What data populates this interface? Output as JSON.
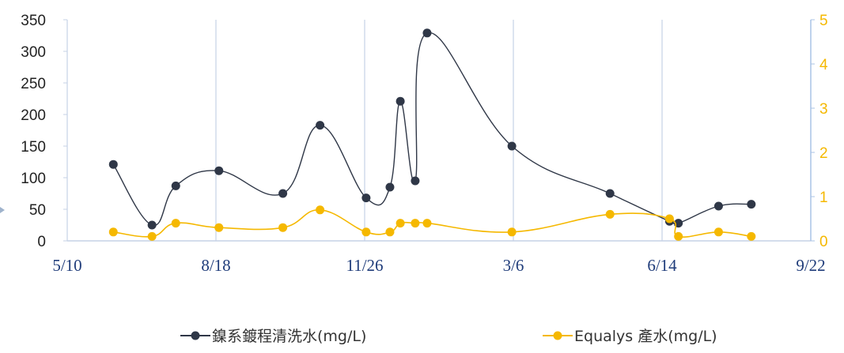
{
  "chart_data": {
    "type": "line",
    "x_axis": {
      "ticks": [
        "5/10",
        "8/18",
        "11/26",
        "3/6",
        "6/14",
        "9/22"
      ]
    },
    "y_left": {
      "min": 0,
      "max": 350,
      "ticks": [
        "0",
        "50",
        "100",
        "150",
        "200",
        "250",
        "300",
        "350"
      ]
    },
    "y_right": {
      "min": 0,
      "max": 5,
      "ticks": [
        "0",
        "1",
        "2",
        "3",
        "4",
        "5"
      ]
    },
    "grid": "vertical",
    "legend_position": "bottom",
    "series": [
      {
        "name": "鎳系鍍程清洗水(mg/L)",
        "axis": "left",
        "color": "#2f3747",
        "smooth": true,
        "points": [
          {
            "x": "6/10",
            "y": 121
          },
          {
            "x": "7/6",
            "y": 25
          },
          {
            "x": "7/22",
            "y": 87
          },
          {
            "x": "8/20",
            "y": 111
          },
          {
            "x": "10/2",
            "y": 75
          },
          {
            "x": "10/27",
            "y": 183
          },
          {
            "x": "11/27",
            "y": 68
          },
          {
            "x": "12/13",
            "y": 85
          },
          {
            "x": "12/20",
            "y": 221
          },
          {
            "x": "12/30",
            "y": 95
          },
          {
            "x": "1/7",
            "y": 329
          },
          {
            "x": "3/5",
            "y": 150
          },
          {
            "x": "5/10",
            "y": 75
          },
          {
            "x": "6/19",
            "y": 31
          },
          {
            "x": "6/25",
            "y": 28
          },
          {
            "x": "7/22",
            "y": 55
          },
          {
            "x": "8/13",
            "y": 58
          }
        ]
      },
      {
        "name": "Equalys 產水(mg/L)",
        "axis": "right",
        "color": "#f5b800",
        "smooth": true,
        "points": [
          {
            "x": "6/10",
            "y": 0.2
          },
          {
            "x": "7/6",
            "y": 0.1
          },
          {
            "x": "7/22",
            "y": 0.4
          },
          {
            "x": "8/20",
            "y": 0.3
          },
          {
            "x": "10/2",
            "y": 0.3
          },
          {
            "x": "10/27",
            "y": 0.7
          },
          {
            "x": "11/27",
            "y": 0.2
          },
          {
            "x": "12/13",
            "y": 0.2
          },
          {
            "x": "12/20",
            "y": 0.4
          },
          {
            "x": "12/30",
            "y": 0.4
          },
          {
            "x": "1/7",
            "y": 0.4
          },
          {
            "x": "3/5",
            "y": 0.2
          },
          {
            "x": "5/10",
            "y": 0.6
          },
          {
            "x": "6/19",
            "y": 0.5
          },
          {
            "x": "6/25",
            "y": 0.1
          },
          {
            "x": "7/22",
            "y": 0.2
          },
          {
            "x": "8/13",
            "y": 0.1
          }
        ]
      }
    ]
  },
  "colors": {
    "left_axis_text": "#222222",
    "right_axis": "#f5b800",
    "x_axis_text": "#1f3c7a",
    "grid": "#c6d2e6",
    "right_axis_line": "#a9c3e6"
  }
}
